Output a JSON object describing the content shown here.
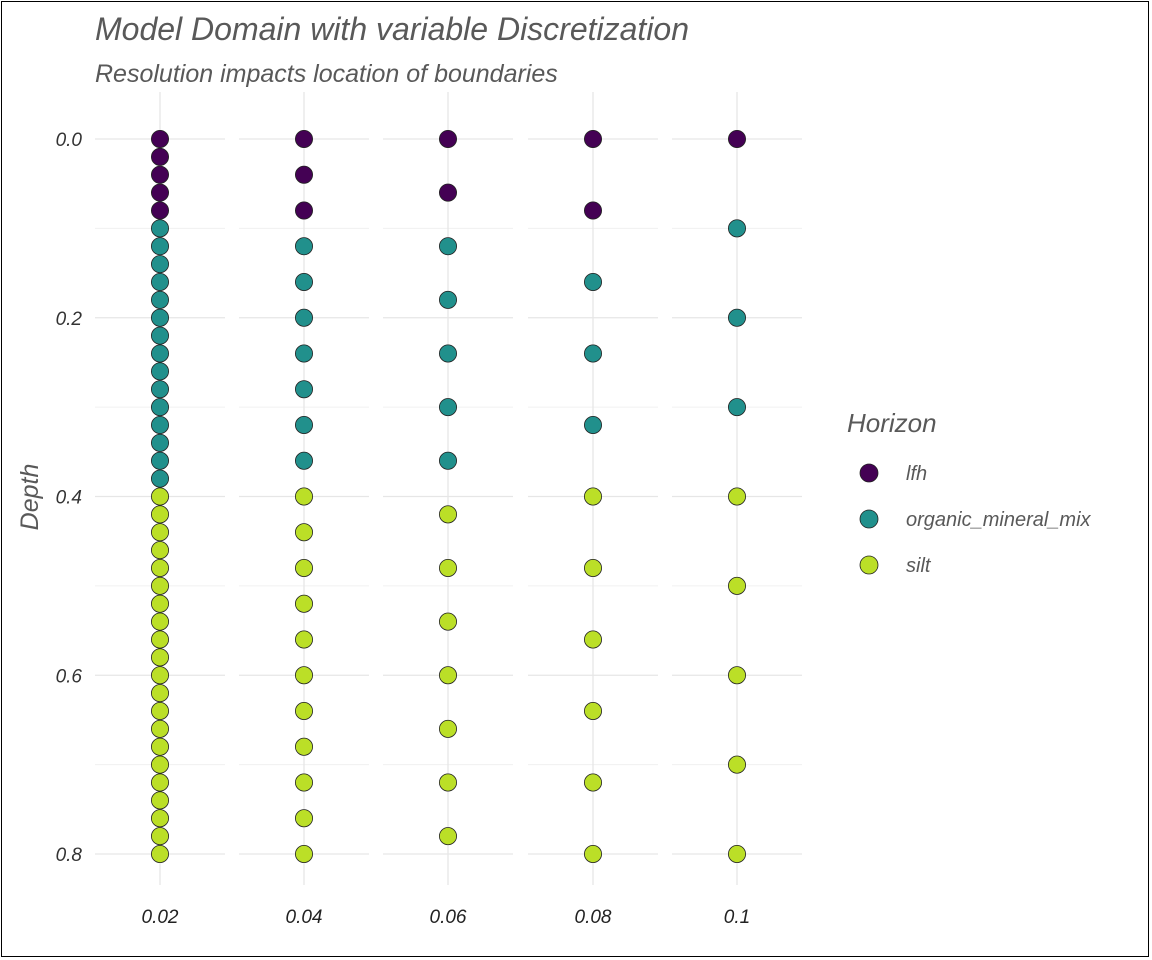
{
  "chart_data": {
    "type": "scatter",
    "title": "Model Domain with variable Discretization",
    "subtitle": "Resolution impacts location of boundaries",
    "xlabel": "",
    "ylabel": "Depth",
    "y_reversed": true,
    "ylim": [
      0,
      0.8
    ],
    "y_ticks": [
      "0.0",
      "0.2",
      "0.4",
      "0.6",
      "0.8"
    ],
    "y_tick_values": [
      0,
      0.2,
      0.4,
      0.6,
      0.8
    ],
    "grid": true,
    "legend_position": "right",
    "legend_title": "Horizon",
    "series": [
      {
        "name": "lfh",
        "color": "#440154"
      },
      {
        "name": "organic_mineral_mix",
        "color": "#21908C"
      },
      {
        "name": "silt",
        "color": "#BBDF27"
      }
    ],
    "panels": [
      {
        "label": "0.02",
        "points": [
          {
            "depth": 0.0,
            "horizon": "lfh"
          },
          {
            "depth": 0.02,
            "horizon": "lfh"
          },
          {
            "depth": 0.04,
            "horizon": "lfh"
          },
          {
            "depth": 0.06,
            "horizon": "lfh"
          },
          {
            "depth": 0.08,
            "horizon": "lfh"
          },
          {
            "depth": 0.1,
            "horizon": "organic_mineral_mix"
          },
          {
            "depth": 0.12,
            "horizon": "organic_mineral_mix"
          },
          {
            "depth": 0.14,
            "horizon": "organic_mineral_mix"
          },
          {
            "depth": 0.16,
            "horizon": "organic_mineral_mix"
          },
          {
            "depth": 0.18,
            "horizon": "organic_mineral_mix"
          },
          {
            "depth": 0.2,
            "horizon": "organic_mineral_mix"
          },
          {
            "depth": 0.22,
            "horizon": "organic_mineral_mix"
          },
          {
            "depth": 0.24,
            "horizon": "organic_mineral_mix"
          },
          {
            "depth": 0.26,
            "horizon": "organic_mineral_mix"
          },
          {
            "depth": 0.28,
            "horizon": "organic_mineral_mix"
          },
          {
            "depth": 0.3,
            "horizon": "organic_mineral_mix"
          },
          {
            "depth": 0.32,
            "horizon": "organic_mineral_mix"
          },
          {
            "depth": 0.34,
            "horizon": "organic_mineral_mix"
          },
          {
            "depth": 0.36,
            "horizon": "organic_mineral_mix"
          },
          {
            "depth": 0.38,
            "horizon": "organic_mineral_mix"
          },
          {
            "depth": 0.4,
            "horizon": "silt"
          },
          {
            "depth": 0.42,
            "horizon": "silt"
          },
          {
            "depth": 0.44,
            "horizon": "silt"
          },
          {
            "depth": 0.46,
            "horizon": "silt"
          },
          {
            "depth": 0.48,
            "horizon": "silt"
          },
          {
            "depth": 0.5,
            "horizon": "silt"
          },
          {
            "depth": 0.52,
            "horizon": "silt"
          },
          {
            "depth": 0.54,
            "horizon": "silt"
          },
          {
            "depth": 0.56,
            "horizon": "silt"
          },
          {
            "depth": 0.58,
            "horizon": "silt"
          },
          {
            "depth": 0.6,
            "horizon": "silt"
          },
          {
            "depth": 0.62,
            "horizon": "silt"
          },
          {
            "depth": 0.64,
            "horizon": "silt"
          },
          {
            "depth": 0.66,
            "horizon": "silt"
          },
          {
            "depth": 0.68,
            "horizon": "silt"
          },
          {
            "depth": 0.7,
            "horizon": "silt"
          },
          {
            "depth": 0.72,
            "horizon": "silt"
          },
          {
            "depth": 0.74,
            "horizon": "silt"
          },
          {
            "depth": 0.76,
            "horizon": "silt"
          },
          {
            "depth": 0.78,
            "horizon": "silt"
          },
          {
            "depth": 0.8,
            "horizon": "silt"
          }
        ]
      },
      {
        "label": "0.04",
        "points": [
          {
            "depth": 0.0,
            "horizon": "lfh"
          },
          {
            "depth": 0.04,
            "horizon": "lfh"
          },
          {
            "depth": 0.08,
            "horizon": "lfh"
          },
          {
            "depth": 0.12,
            "horizon": "organic_mineral_mix"
          },
          {
            "depth": 0.16,
            "horizon": "organic_mineral_mix"
          },
          {
            "depth": 0.2,
            "horizon": "organic_mineral_mix"
          },
          {
            "depth": 0.24,
            "horizon": "organic_mineral_mix"
          },
          {
            "depth": 0.28,
            "horizon": "organic_mineral_mix"
          },
          {
            "depth": 0.32,
            "horizon": "organic_mineral_mix"
          },
          {
            "depth": 0.36,
            "horizon": "organic_mineral_mix"
          },
          {
            "depth": 0.4,
            "horizon": "silt"
          },
          {
            "depth": 0.44,
            "horizon": "silt"
          },
          {
            "depth": 0.48,
            "horizon": "silt"
          },
          {
            "depth": 0.52,
            "horizon": "silt"
          },
          {
            "depth": 0.56,
            "horizon": "silt"
          },
          {
            "depth": 0.6,
            "horizon": "silt"
          },
          {
            "depth": 0.64,
            "horizon": "silt"
          },
          {
            "depth": 0.68,
            "horizon": "silt"
          },
          {
            "depth": 0.72,
            "horizon": "silt"
          },
          {
            "depth": 0.76,
            "horizon": "silt"
          },
          {
            "depth": 0.8,
            "horizon": "silt"
          }
        ]
      },
      {
        "label": "0.06",
        "points": [
          {
            "depth": 0.0,
            "horizon": "lfh"
          },
          {
            "depth": 0.06,
            "horizon": "lfh"
          },
          {
            "depth": 0.12,
            "horizon": "organic_mineral_mix"
          },
          {
            "depth": 0.18,
            "horizon": "organic_mineral_mix"
          },
          {
            "depth": 0.24,
            "horizon": "organic_mineral_mix"
          },
          {
            "depth": 0.3,
            "horizon": "organic_mineral_mix"
          },
          {
            "depth": 0.36,
            "horizon": "organic_mineral_mix"
          },
          {
            "depth": 0.42,
            "horizon": "silt"
          },
          {
            "depth": 0.48,
            "horizon": "silt"
          },
          {
            "depth": 0.54,
            "horizon": "silt"
          },
          {
            "depth": 0.6,
            "horizon": "silt"
          },
          {
            "depth": 0.66,
            "horizon": "silt"
          },
          {
            "depth": 0.72,
            "horizon": "silt"
          },
          {
            "depth": 0.78,
            "horizon": "silt"
          }
        ]
      },
      {
        "label": "0.08",
        "points": [
          {
            "depth": 0.0,
            "horizon": "lfh"
          },
          {
            "depth": 0.08,
            "horizon": "lfh"
          },
          {
            "depth": 0.16,
            "horizon": "organic_mineral_mix"
          },
          {
            "depth": 0.24,
            "horizon": "organic_mineral_mix"
          },
          {
            "depth": 0.32,
            "horizon": "organic_mineral_mix"
          },
          {
            "depth": 0.4,
            "horizon": "silt"
          },
          {
            "depth": 0.48,
            "horizon": "silt"
          },
          {
            "depth": 0.56,
            "horizon": "silt"
          },
          {
            "depth": 0.64,
            "horizon": "silt"
          },
          {
            "depth": 0.72,
            "horizon": "silt"
          },
          {
            "depth": 0.8,
            "horizon": "silt"
          }
        ]
      },
      {
        "label": "0.1",
        "points": [
          {
            "depth": 0.0,
            "horizon": "lfh"
          },
          {
            "depth": 0.1,
            "horizon": "organic_mineral_mix"
          },
          {
            "depth": 0.2,
            "horizon": "organic_mineral_mix"
          },
          {
            "depth": 0.3,
            "horizon": "organic_mineral_mix"
          },
          {
            "depth": 0.4,
            "horizon": "silt"
          },
          {
            "depth": 0.5,
            "horizon": "silt"
          },
          {
            "depth": 0.6,
            "horizon": "silt"
          },
          {
            "depth": 0.7,
            "horizon": "silt"
          },
          {
            "depth": 0.8,
            "horizon": "silt"
          }
        ]
      }
    ]
  }
}
